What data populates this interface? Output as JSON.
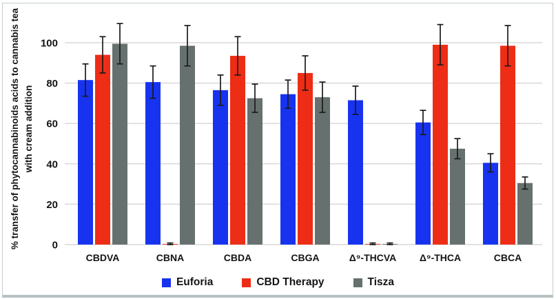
{
  "figure": {
    "background": "#ffffff",
    "frame_color": "#c2cbce",
    "frame_bottom_color": "#b6c0c3"
  },
  "chart_data": {
    "type": "bar",
    "title": "",
    "ylabel": "% transfer of phytocannabinoids acids to cannabis tea with cream addition",
    "ylabel_lines": [
      "% transfer of phytocannabinoids acids to cannabis tea",
      "with cream addition"
    ],
    "xlabel": "",
    "categories": [
      "CBDVA",
      "CBNA",
      "CBDA",
      "CBGA",
      "Δ⁹-THCVA",
      "Δ⁹-THCA",
      "CBCA"
    ],
    "series": [
      {
        "name": "Euforia",
        "color": "#1733F0",
        "values": [
          81.5,
          80.5,
          76.5,
          74.5,
          71.5,
          60.5,
          40.5
        ],
        "errors": [
          8,
          8,
          7.5,
          7,
          7,
          6,
          4.5
        ]
      },
      {
        "name": "CBD Therapy",
        "color": "#EE2D16",
        "values": [
          94,
          0.3,
          93.5,
          85,
          0.3,
          99,
          98.5
        ],
        "errors": [
          9,
          0.5,
          9.5,
          8.5,
          0.5,
          10,
          10
        ]
      },
      {
        "name": "Tisza",
        "color": "#66716F",
        "values": [
          99.5,
          98.5,
          72.5,
          73,
          0.3,
          47.5,
          30.5
        ],
        "errors": [
          10,
          10,
          7,
          7.5,
          0.5,
          5,
          3
        ]
      }
    ],
    "y_ticks": [
      0,
      20,
      40,
      60,
      80,
      100
    ],
    "ylim": [
      0,
      116
    ],
    "grid": true,
    "gridline_color": "#d8d8d8",
    "errorbar_color": "#1a1a1a",
    "legend_position": "bottom"
  }
}
